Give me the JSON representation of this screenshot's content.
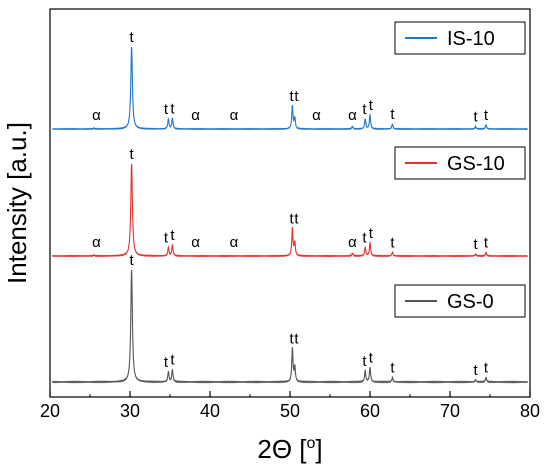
{
  "chart_data": {
    "type": "line",
    "title": "",
    "xlabel": "2Θ [°]",
    "xlabel_main": "2Θ [",
    "xlabel_unit": "o",
    "xlabel_close": "]",
    "ylabel": "Intensity [a.u.]",
    "xlim": [
      20,
      80
    ],
    "xticks": [
      20,
      30,
      40,
      50,
      60,
      70,
      80
    ],
    "y_tick_labels_shown": false,
    "legend_placement": "top-right of each panel",
    "peak_positions": [
      30.2,
      34.8,
      35.3,
      50.3,
      50.6,
      59.4,
      60.0,
      62.8,
      73.2,
      74.5
    ],
    "series": [
      {
        "name": "IS-10",
        "color": "#1f77c8",
        "baseline": 0,
        "peak_heights": [
          1.0,
          0.12,
          0.13,
          0.28,
          0.13,
          0.12,
          0.17,
          0.06,
          0.03,
          0.05
        ],
        "extra_peaks": [
          {
            "x": 57.8,
            "h": 0.03
          },
          {
            "x": 25.5,
            "h": 0.01
          }
        ],
        "annotations": [
          {
            "x": 25.8,
            "text": "α"
          },
          {
            "x": 30.2,
            "text": "t"
          },
          {
            "x": 34.5,
            "text": "t"
          },
          {
            "x": 35.3,
            "text": "t"
          },
          {
            "x": 38.2,
            "text": "α"
          },
          {
            "x": 43.0,
            "text": "α"
          },
          {
            "x": 50.2,
            "text": "t"
          },
          {
            "x": 50.8,
            "text": "t"
          },
          {
            "x": 53.3,
            "text": "α"
          },
          {
            "x": 57.8,
            "text": "α"
          },
          {
            "x": 59.3,
            "text": "t"
          },
          {
            "x": 60.1,
            "text": "t"
          },
          {
            "x": 62.8,
            "text": "t"
          },
          {
            "x": 73.2,
            "text": "t"
          },
          {
            "x": 74.5,
            "text": "t"
          }
        ]
      },
      {
        "name": "GS-10",
        "color": "#e0332e",
        "baseline": 0,
        "peak_heights": [
          1.0,
          0.09,
          0.12,
          0.3,
          0.14,
          0.09,
          0.14,
          0.04,
          0.02,
          0.04
        ],
        "extra_peaks": [
          {
            "x": 57.8,
            "h": 0.03
          },
          {
            "x": 25.5,
            "h": 0.01
          }
        ],
        "annotations": [
          {
            "x": 25.8,
            "text": "α"
          },
          {
            "x": 30.2,
            "text": "t"
          },
          {
            "x": 34.5,
            "text": "t"
          },
          {
            "x": 35.3,
            "text": "t"
          },
          {
            "x": 38.2,
            "text": "α"
          },
          {
            "x": 43.0,
            "text": "α"
          },
          {
            "x": 50.2,
            "text": "t"
          },
          {
            "x": 50.8,
            "text": "t"
          },
          {
            "x": 57.8,
            "text": "α"
          },
          {
            "x": 59.3,
            "text": "t"
          },
          {
            "x": 60.1,
            "text": "t"
          },
          {
            "x": 62.8,
            "text": "t"
          },
          {
            "x": 73.2,
            "text": "t"
          },
          {
            "x": 74.5,
            "text": "t"
          }
        ]
      },
      {
        "name": "GS-0",
        "color": "#555555",
        "baseline": 0,
        "peak_heights": [
          1.0,
          0.09,
          0.11,
          0.3,
          0.13,
          0.1,
          0.13,
          0.04,
          0.02,
          0.04
        ],
        "extra_peaks": [],
        "annotations": [
          {
            "x": 30.2,
            "text": "t"
          },
          {
            "x": 34.5,
            "text": "t"
          },
          {
            "x": 35.3,
            "text": "t"
          },
          {
            "x": 50.2,
            "text": "t"
          },
          {
            "x": 50.8,
            "text": "t"
          },
          {
            "x": 59.3,
            "text": "t"
          },
          {
            "x": 60.1,
            "text": "t"
          },
          {
            "x": 62.8,
            "text": "t"
          },
          {
            "x": 73.2,
            "text": "t"
          },
          {
            "x": 74.5,
            "text": "t"
          }
        ]
      }
    ]
  }
}
